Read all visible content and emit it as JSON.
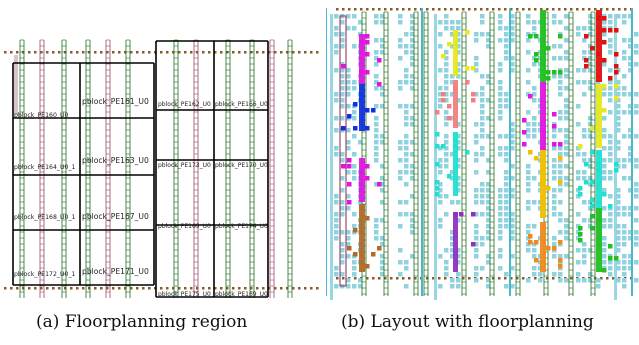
{
  "panel_a": {
    "caption": "(a) Floorplanning region",
    "pblocks": [
      "pblock_PE160_U0",
      "pblock_PE161_U0",
      "pblock_PE162_U0",
      "pblock_PE166_U0",
      "pblock_PE164_U0_1",
      "pblock_PE163_U0",
      "pblock_PE173_U0",
      "pblock_PE170_U0",
      "pblock_PE168_U0_1",
      "pblock_PE167_U0",
      "pblock_PE165_U0",
      "pblock_PE174_U0",
      "pblock_PE172_U0_1",
      "pblock_PE171_U0",
      "pblock_PE175_U0",
      "pblock_PE169_U0"
    ]
  },
  "panel_b": {
    "caption": "(b) Layout with floorplanning"
  },
  "colors": {
    "grid_line": "#000000",
    "bram_column": "#1f6b1f",
    "dsp_column": "#9a4a6a",
    "io_dot": "#8a5a2a",
    "cell": "#8fd3df",
    "magenta": "#e016e0",
    "blue": "#1030e0",
    "brown": "#b26a2a",
    "yellow": "#e8e820",
    "salmon": "#f08080",
    "cyan": "#20e0d0",
    "orange": "#f08a20",
    "purple": "#9030c0",
    "green": "#20c020",
    "red": "#e01010",
    "gold": "#f0c000",
    "lime": "#80e020"
  }
}
